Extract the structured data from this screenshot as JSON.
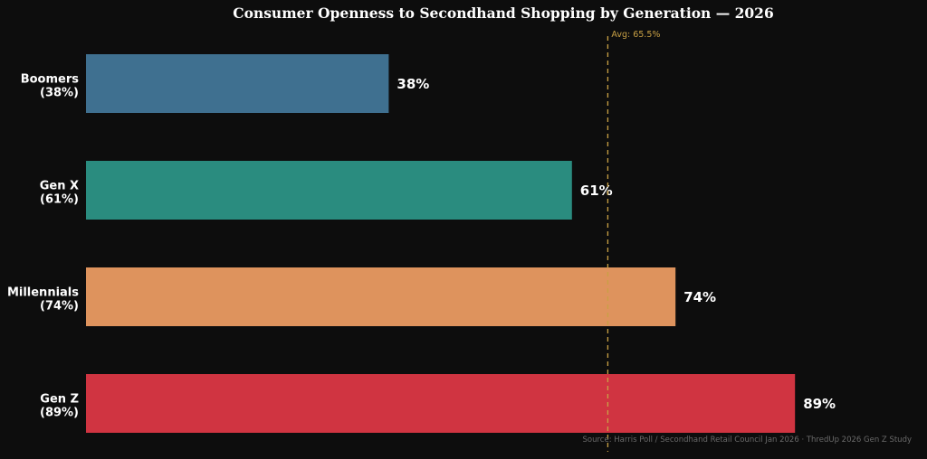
{
  "chart_data": {
    "type": "bar",
    "orientation": "horizontal",
    "title": "Consumer Openness to Secondhand Shopping by Generation — 2026",
    "categories": [
      {
        "name": "Boomers",
        "sub": "(38%)"
      },
      {
        "name": "Gen X",
        "sub": "(61%)"
      },
      {
        "name": "Millennials",
        "sub": "(74%)"
      },
      {
        "name": "Gen Z",
        "sub": "(89%)"
      }
    ],
    "values": [
      38,
      61,
      74,
      89
    ],
    "value_labels": [
      "38%",
      "61%",
      "74%",
      "89%"
    ],
    "colors": [
      "#3f7090",
      "#2a8c7f",
      "#de935d",
      "#d03441"
    ],
    "xlim": [
      0,
      100
    ],
    "reference_line": {
      "value": 65.5,
      "label": "Avg: 65.5%",
      "color": "#c9a145"
    },
    "source": "Source: Harris Poll / Secondhand Retail Council Jan 2026 · ThredUp 2026 Gen Z Study",
    "grid": false,
    "legend": "none"
  }
}
